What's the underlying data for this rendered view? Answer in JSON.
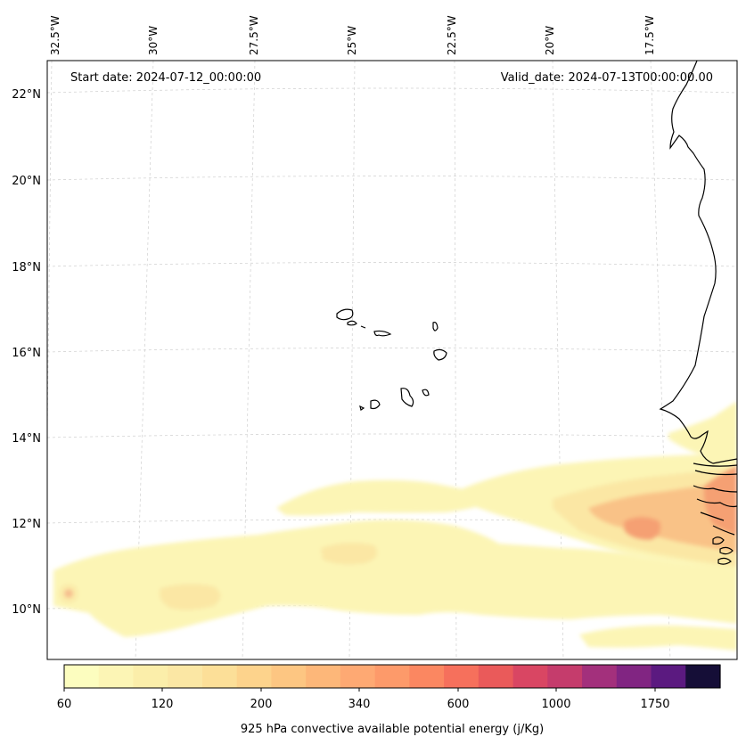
{
  "map": {
    "start_date": "Start date: 2024-07-12_00:00:00",
    "valid_date": "Valid_date: 2024-07-13T00:00:00.00",
    "lon_labels": [
      "32.5°W",
      "30°W",
      "27.5°W",
      "25°W",
      "22.5°W",
      "20°W",
      "17.5°W"
    ],
    "lat_labels": [
      "22°N",
      "20°N",
      "18°N",
      "16°N",
      "14°N",
      "12°N",
      "10°N"
    ],
    "field_colors": {
      "pale": "#fcf5b5",
      "light": "#fbe7a4",
      "orange": "#f9c287",
      "salmon": "#f5a073",
      "red": "#ea5a5a"
    }
  },
  "colorbar": {
    "colors": [
      "#fcfdbf",
      "#fcf5b5",
      "#fbeeaa",
      "#fbe7a4",
      "#fcdf98",
      "#fdd38c",
      "#fdc682",
      "#fdb779",
      "#fea973",
      "#fd9a6a",
      "#fb8761",
      "#f6705c",
      "#ea5a5a",
      "#d94663",
      "#c53c6c",
      "#a3307c",
      "#812582",
      "#5b1a80",
      "#150e37"
    ],
    "tick_labels": [
      "60",
      "120",
      "200",
      "340",
      "600",
      "1000",
      "1750"
    ],
    "title": "925 hPa convective available potential energy (j/Kg)"
  }
}
